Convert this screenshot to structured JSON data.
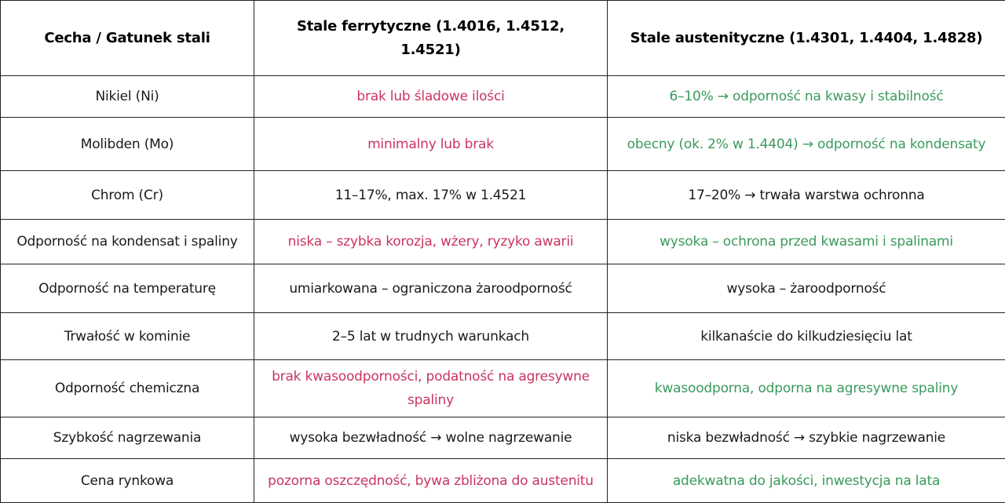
{
  "colors": {
    "negative": "#c8365f",
    "positive": "#3a9a5c",
    "neutral": "#1a1a1a"
  },
  "headers": [
    "Cecha / Gatunek stali",
    "Stale ferrytyczne (1.4016, 1.4512, 1.4521)",
    "Stale austenityczne (1.4301, 1.4404, 1.4828)"
  ],
  "rows": [
    {
      "feature": "Nikiel (Ni)",
      "ferritic": "brak lub śladowe ilości",
      "austenitic": "6–10% → odporność na kwasy i stabilność"
    },
    {
      "feature": "Molibden (Mo)",
      "ferritic": "minimalny lub brak",
      "austenitic": "obecny (ok. 2% w 1.4404) → odporność na kondensaty"
    },
    {
      "feature": "Chrom (Cr)",
      "ferritic": "11–17%, max. 17% w 1.4521",
      "austenitic": "17–20% → trwała warstwa ochronna"
    },
    {
      "feature": "Odporność na kondensat i spaliny",
      "ferritic": "niska – szybka korozja, wżery, ryzyko awarii",
      "austenitic": "wysoka – ochrona przed kwasami i spalinami"
    },
    {
      "feature": "Odporność na temperaturę",
      "ferritic": "umiarkowana – ograniczona żaroodporność",
      "austenitic": "wysoka – żaroodporność"
    },
    {
      "feature": "Trwałość w kominie",
      "ferritic": "2–5 lat w trudnych warunkach",
      "austenitic": "kilkanaście do kilkudziesięciu lat"
    },
    {
      "feature": "Odporność chemiczna",
      "ferritic": "brak kwasoodporności, podatność na agresywne spaliny",
      "austenitic": "kwasoodporna, odporna na agresywne spaliny"
    },
    {
      "feature": "Szybkość nagrzewania",
      "ferritic": "wysoka bezwładność → wolne nagrzewanie",
      "austenitic": "niska bezwładność → szybkie nagrzewanie"
    },
    {
      "feature": "Cena rynkowa",
      "ferritic": "pozorna oszczędność, bywa zbliżona do austenitu",
      "austenitic": "adekwatna do jakości, inwestycja na lata"
    }
  ]
}
